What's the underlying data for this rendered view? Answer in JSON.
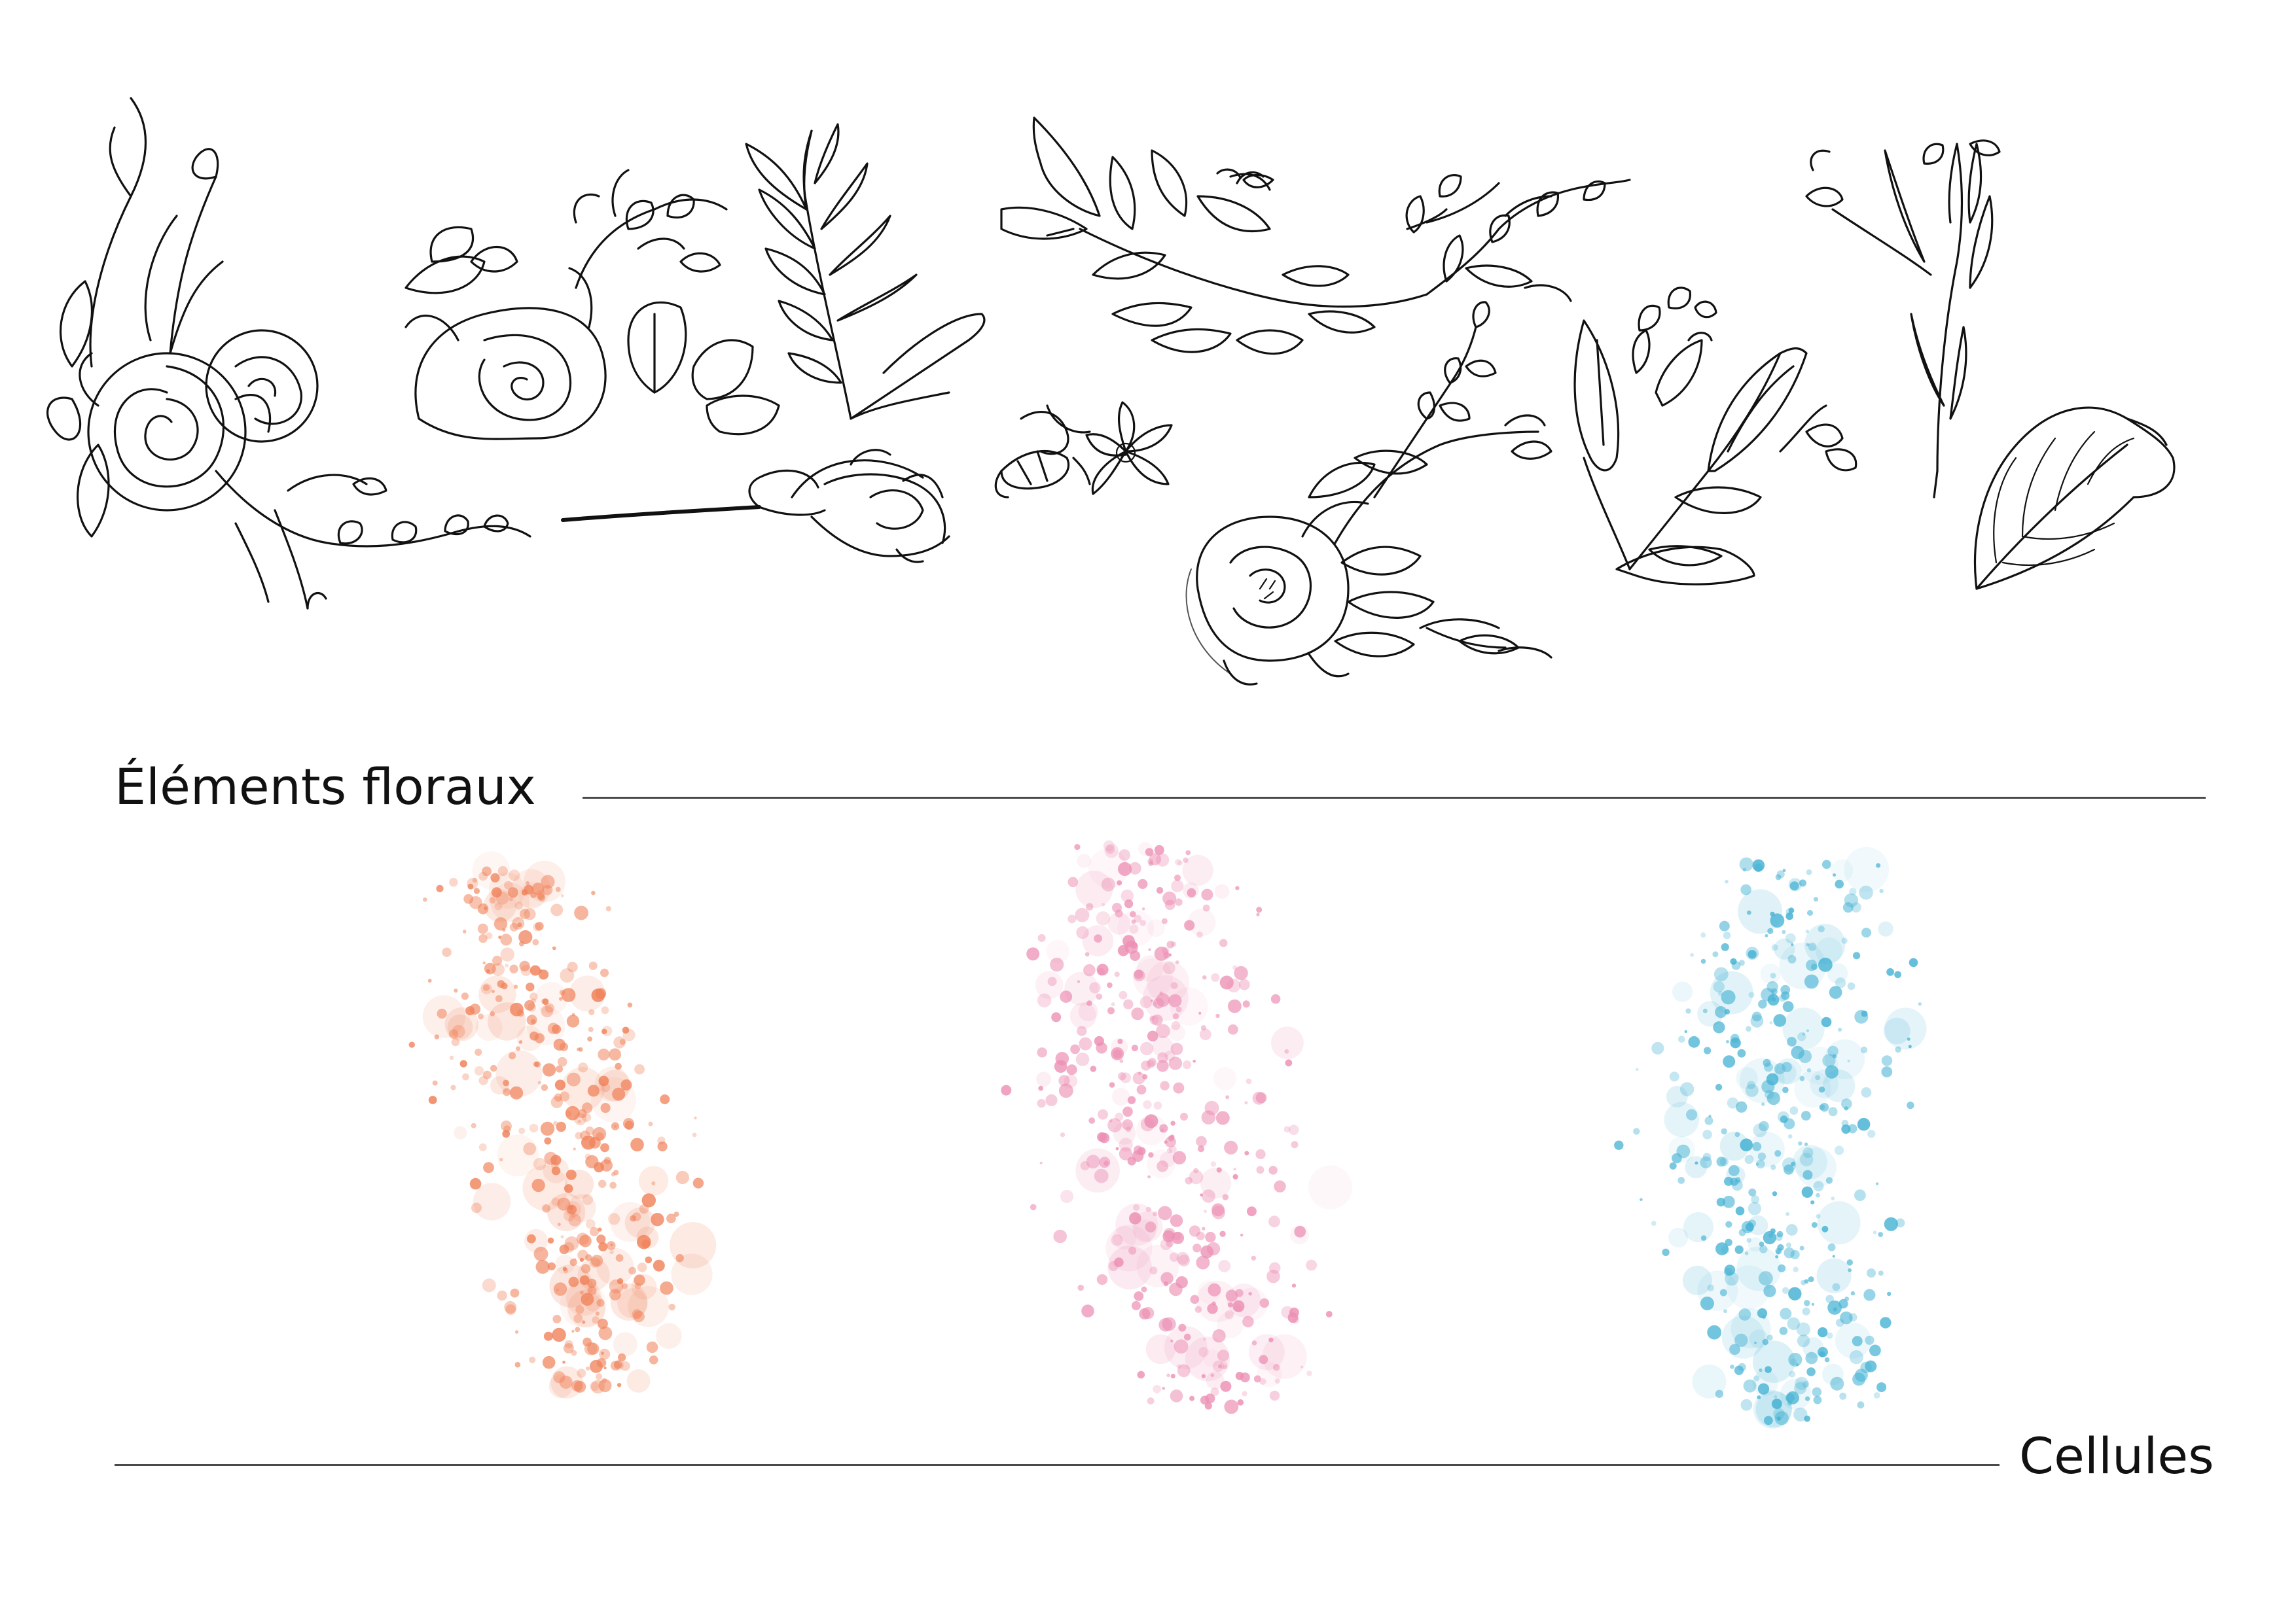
{
  "sections": {
    "floral": {
      "title": "Éléments floraux"
    },
    "cells": {
      "title": "Cellules"
    }
  },
  "colors": {
    "line_art": "#111111",
    "rule": "#4a4a4a",
    "cell_coral": "#f0825a",
    "cell_pink": "#ec8fb3",
    "cell_blue": "#47b3d4"
  },
  "illustrations": {
    "floral_elements": [
      "rose-bouquet-icon",
      "rose-with-leaves-icon",
      "fern-branch-icon",
      "long-stem-rosebud-icon",
      "leafy-branch-icon",
      "bellflower-icon",
      "star-flower-icon",
      "budding-twig-icon",
      "peony-bouquet-icon",
      "lily-of-the-valley-icon",
      "wildflower-stem-icon",
      "heart-leaf-icon"
    ],
    "cell_textures": [
      "coral-cell-cluster",
      "pink-cell-cluster",
      "blue-cell-cluster"
    ]
  }
}
